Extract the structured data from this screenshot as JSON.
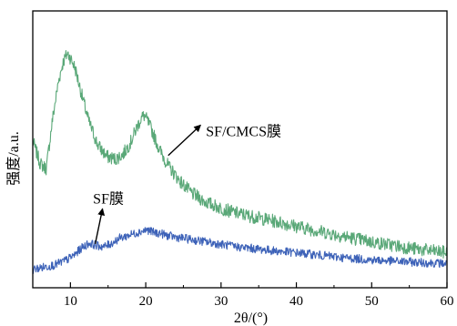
{
  "chart_data": {
    "type": "line",
    "xlabel": "2θ/(°)",
    "ylabel": "强度/a.u.",
    "xlim": [
      5,
      60
    ],
    "ylim": [
      0,
      1
    ],
    "x_ticks": [
      "10",
      "20",
      "30",
      "40",
      "50",
      "60"
    ],
    "y_ticks_shown": false,
    "grid": false,
    "legend": "none",
    "series": [
      {
        "name": "SF/CMCS膜",
        "color": "#5aa878",
        "x": [
          5,
          6,
          6.8,
          7.6,
          8.4,
          9.0,
          9.6,
          10.0,
          10.6,
          11.4,
          12.4,
          13.6,
          14.8,
          16.0,
          17.0,
          18.0,
          18.8,
          19.4,
          19.8,
          20.2,
          20.8,
          21.8,
          23,
          24.5,
          26,
          28,
          30,
          32,
          35,
          38,
          40,
          43,
          46,
          50,
          53,
          56,
          60
        ],
        "values": [
          0.535,
          0.44,
          0.42,
          0.62,
          0.78,
          0.86,
          0.9,
          0.88,
          0.84,
          0.74,
          0.62,
          0.52,
          0.47,
          0.46,
          0.48,
          0.53,
          0.59,
          0.63,
          0.64,
          0.62,
          0.58,
          0.5,
          0.43,
          0.37,
          0.32,
          0.28,
          0.255,
          0.235,
          0.215,
          0.195,
          0.18,
          0.16,
          0.14,
          0.115,
          0.1,
          0.085,
          0.07
        ]
      },
      {
        "name": "SF膜",
        "color": "#3d62b8",
        "x": [
          5,
          6.5,
          8,
          9.5,
          10.5,
          11.5,
          12.5,
          13.5,
          14.5,
          15.5,
          16.5,
          17.5,
          18.5,
          19.5,
          20.2,
          21,
          22,
          23,
          24,
          26,
          28,
          30,
          32,
          35,
          38,
          40,
          43,
          46,
          50,
          53,
          56,
          60
        ],
        "values": [
          0.0,
          0.01,
          0.02,
          0.04,
          0.06,
          0.09,
          0.11,
          0.1,
          0.095,
          0.11,
          0.13,
          0.14,
          0.15,
          0.16,
          0.165,
          0.155,
          0.15,
          0.14,
          0.135,
          0.125,
          0.115,
          0.105,
          0.095,
          0.085,
          0.075,
          0.07,
          0.06,
          0.05,
          0.04,
          0.035,
          0.03,
          0.025
        ]
      }
    ],
    "annotations": [
      {
        "label": "SF/CMCS膜",
        "series": "SF/CMCS膜",
        "arrow_to_x": 22.5,
        "text_x": 28,
        "text_y": 0.555
      },
      {
        "label": "SF膜",
        "series": "SF膜",
        "arrow_to_x": 14.5,
        "text_x": 13,
        "text_y": 0.275
      }
    ]
  }
}
